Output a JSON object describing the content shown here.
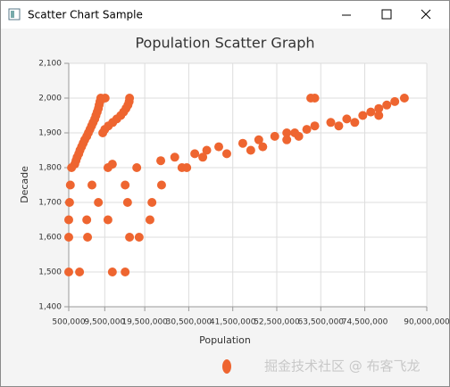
{
  "window": {
    "title": "Scatter Chart Sample"
  },
  "watermark": "掘金技术社区 @ 布客飞龙",
  "chart_data": {
    "type": "scatter",
    "title": "Population Scatter Graph",
    "x_label": "Population",
    "y_label": "Decade",
    "xlim": [
      500000,
      90000000
    ],
    "xticks": [
      {
        "value": 500000,
        "label": "500,000"
      },
      {
        "value": 9500000,
        "label": "9,500,000"
      },
      {
        "value": 19500000,
        "label": "19,500,000"
      },
      {
        "value": 30500000,
        "label": "30,500,000"
      },
      {
        "value": 41500000,
        "label": "41,500,000"
      },
      {
        "value": 52500000,
        "label": "52,500,000"
      },
      {
        "value": 63500000,
        "label": "63,500,000"
      },
      {
        "value": 74500000,
        "label": "74,500,000"
      },
      {
        "value": 90000000,
        "label": "90,000,000"
      }
    ],
    "ylim": [
      1400,
      2100
    ],
    "yticks": [
      {
        "value": 1400,
        "label": "1,400"
      },
      {
        "value": 1500,
        "label": "1,500"
      },
      {
        "value": 1600,
        "label": "1,600"
      },
      {
        "value": 1700,
        "label": "1,700"
      },
      {
        "value": 1800,
        "label": "1,800"
      },
      {
        "value": 1900,
        "label": "1,900"
      },
      {
        "value": 2000,
        "label": "2,000"
      },
      {
        "value": 2100,
        "label": "2,100"
      }
    ],
    "grid": true,
    "series": [
      {
        "color": "#ee6530",
        "x": [
          500000,
          3200000,
          11400000,
          14600000,
          500000,
          5200000,
          15700000,
          18100000,
          500000,
          5000000,
          10300000,
          20800000,
          700000,
          7900000,
          15200000,
          21300000,
          900000,
          6300000,
          14600000,
          23700000,
          1200000,
          10300000,
          17500000,
          28800000,
          11400000,
          2000000,
          2300000,
          2600000,
          3000000,
          3300000,
          3700000,
          4100000,
          4500000,
          5000000,
          5400000,
          5800000,
          6200000,
          6600000,
          7000000,
          7300000,
          7600000,
          7900000,
          8100000,
          8300000,
          8500000,
          9000000,
          9500000,
          10400000,
          11500000,
          12500000,
          13500000,
          14200000,
          14800000,
          15300000,
          15600000,
          15700000,
          9600000,
          23500000,
          27000000,
          32000000,
          35000000,
          38000000,
          44000000,
          48000000,
          52000000,
          57000000,
          60000000,
          62000000,
          66000000,
          70000000,
          74000000,
          76000000,
          78000000,
          80000000,
          82000000,
          84400000,
          30000000,
          34000000,
          40000000,
          46000000,
          49000000,
          55000000,
          58000000,
          55000000,
          68000000,
          72000000,
          78000000,
          61000000,
          62000000
        ],
        "values": [
          1500,
          1500,
          1500,
          1500,
          1600,
          1600,
          1600,
          1600,
          1650,
          1650,
          1650,
          1650,
          1700,
          1700,
          1700,
          1700,
          1750,
          1750,
          1750,
          1750,
          1800,
          1800,
          1800,
          1800,
          1810,
          1810,
          1820,
          1830,
          1840,
          1850,
          1860,
          1870,
          1880,
          1890,
          1900,
          1910,
          1920,
          1930,
          1940,
          1950,
          1960,
          1970,
          1980,
          1990,
          2000,
          1900,
          1910,
          1920,
          1930,
          1940,
          1950,
          1960,
          1970,
          1980,
          1990,
          2000,
          2000,
          1820,
          1830,
          1840,
          1850,
          1860,
          1870,
          1880,
          1890,
          1900,
          1910,
          1920,
          1930,
          1940,
          1950,
          1960,
          1970,
          1980,
          1990,
          2000,
          1800,
          1830,
          1840,
          1850,
          1860,
          1880,
          1890,
          1900,
          1920,
          1930,
          1950,
          2000,
          2000
        ]
      }
    ]
  }
}
